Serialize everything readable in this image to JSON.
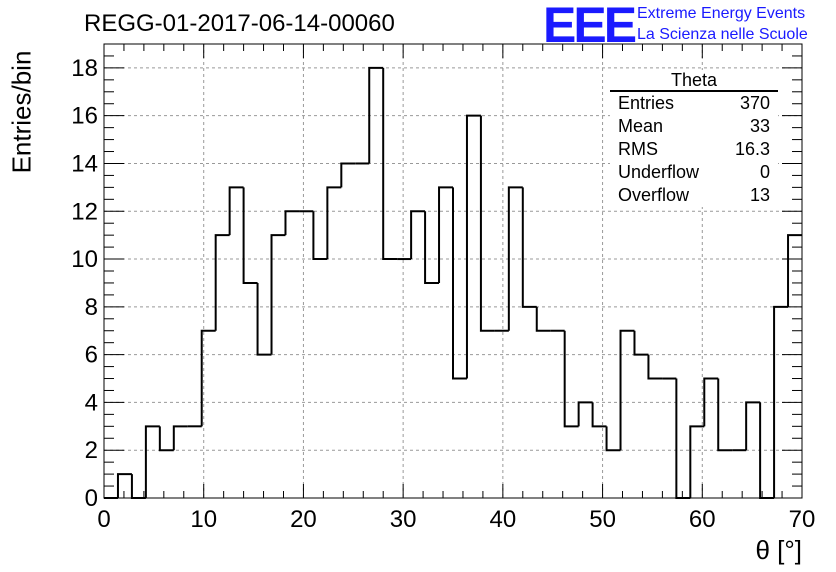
{
  "title": "REGG-01-2017-06-14-00060",
  "logo": {
    "mark": "EEE",
    "line1": "Extreme Energy Events",
    "line2": "La Scienza nelle Scuole",
    "color": "#1a1aff"
  },
  "stats_box": {
    "title": "Theta",
    "rows": [
      {
        "label": "Entries",
        "value": "370"
      },
      {
        "label": "Mean",
        "value": "33"
      },
      {
        "label": "RMS",
        "value": "16.3"
      },
      {
        "label": "Underflow",
        "value": "0"
      },
      {
        "label": "Overflow",
        "value": "13"
      }
    ]
  },
  "chart_data": {
    "type": "bar",
    "title": "REGG-01-2017-06-14-00060",
    "xlabel": "θ [°]",
    "ylabel": "Entries/bin",
    "xlim": [
      0,
      70
    ],
    "ylim": [
      0,
      19
    ],
    "bin_width": 1.4,
    "x_ticks": [
      0,
      10,
      20,
      30,
      40,
      50,
      60,
      70
    ],
    "y_ticks": [
      0,
      2,
      4,
      6,
      8,
      10,
      12,
      14,
      16,
      18
    ],
    "grid": true,
    "values": [
      0,
      1,
      0,
      3,
      2,
      3,
      3,
      7,
      11,
      13,
      9,
      6,
      11,
      12,
      12,
      10,
      13,
      14,
      14,
      18,
      10,
      10,
      12,
      9,
      13,
      5,
      16,
      7,
      7,
      13,
      8,
      7,
      7,
      3,
      4,
      3,
      2,
      7,
      6,
      5,
      5,
      0,
      3,
      5,
      2,
      2,
      4,
      0,
      8,
      11
    ],
    "line_color": "#000000"
  }
}
